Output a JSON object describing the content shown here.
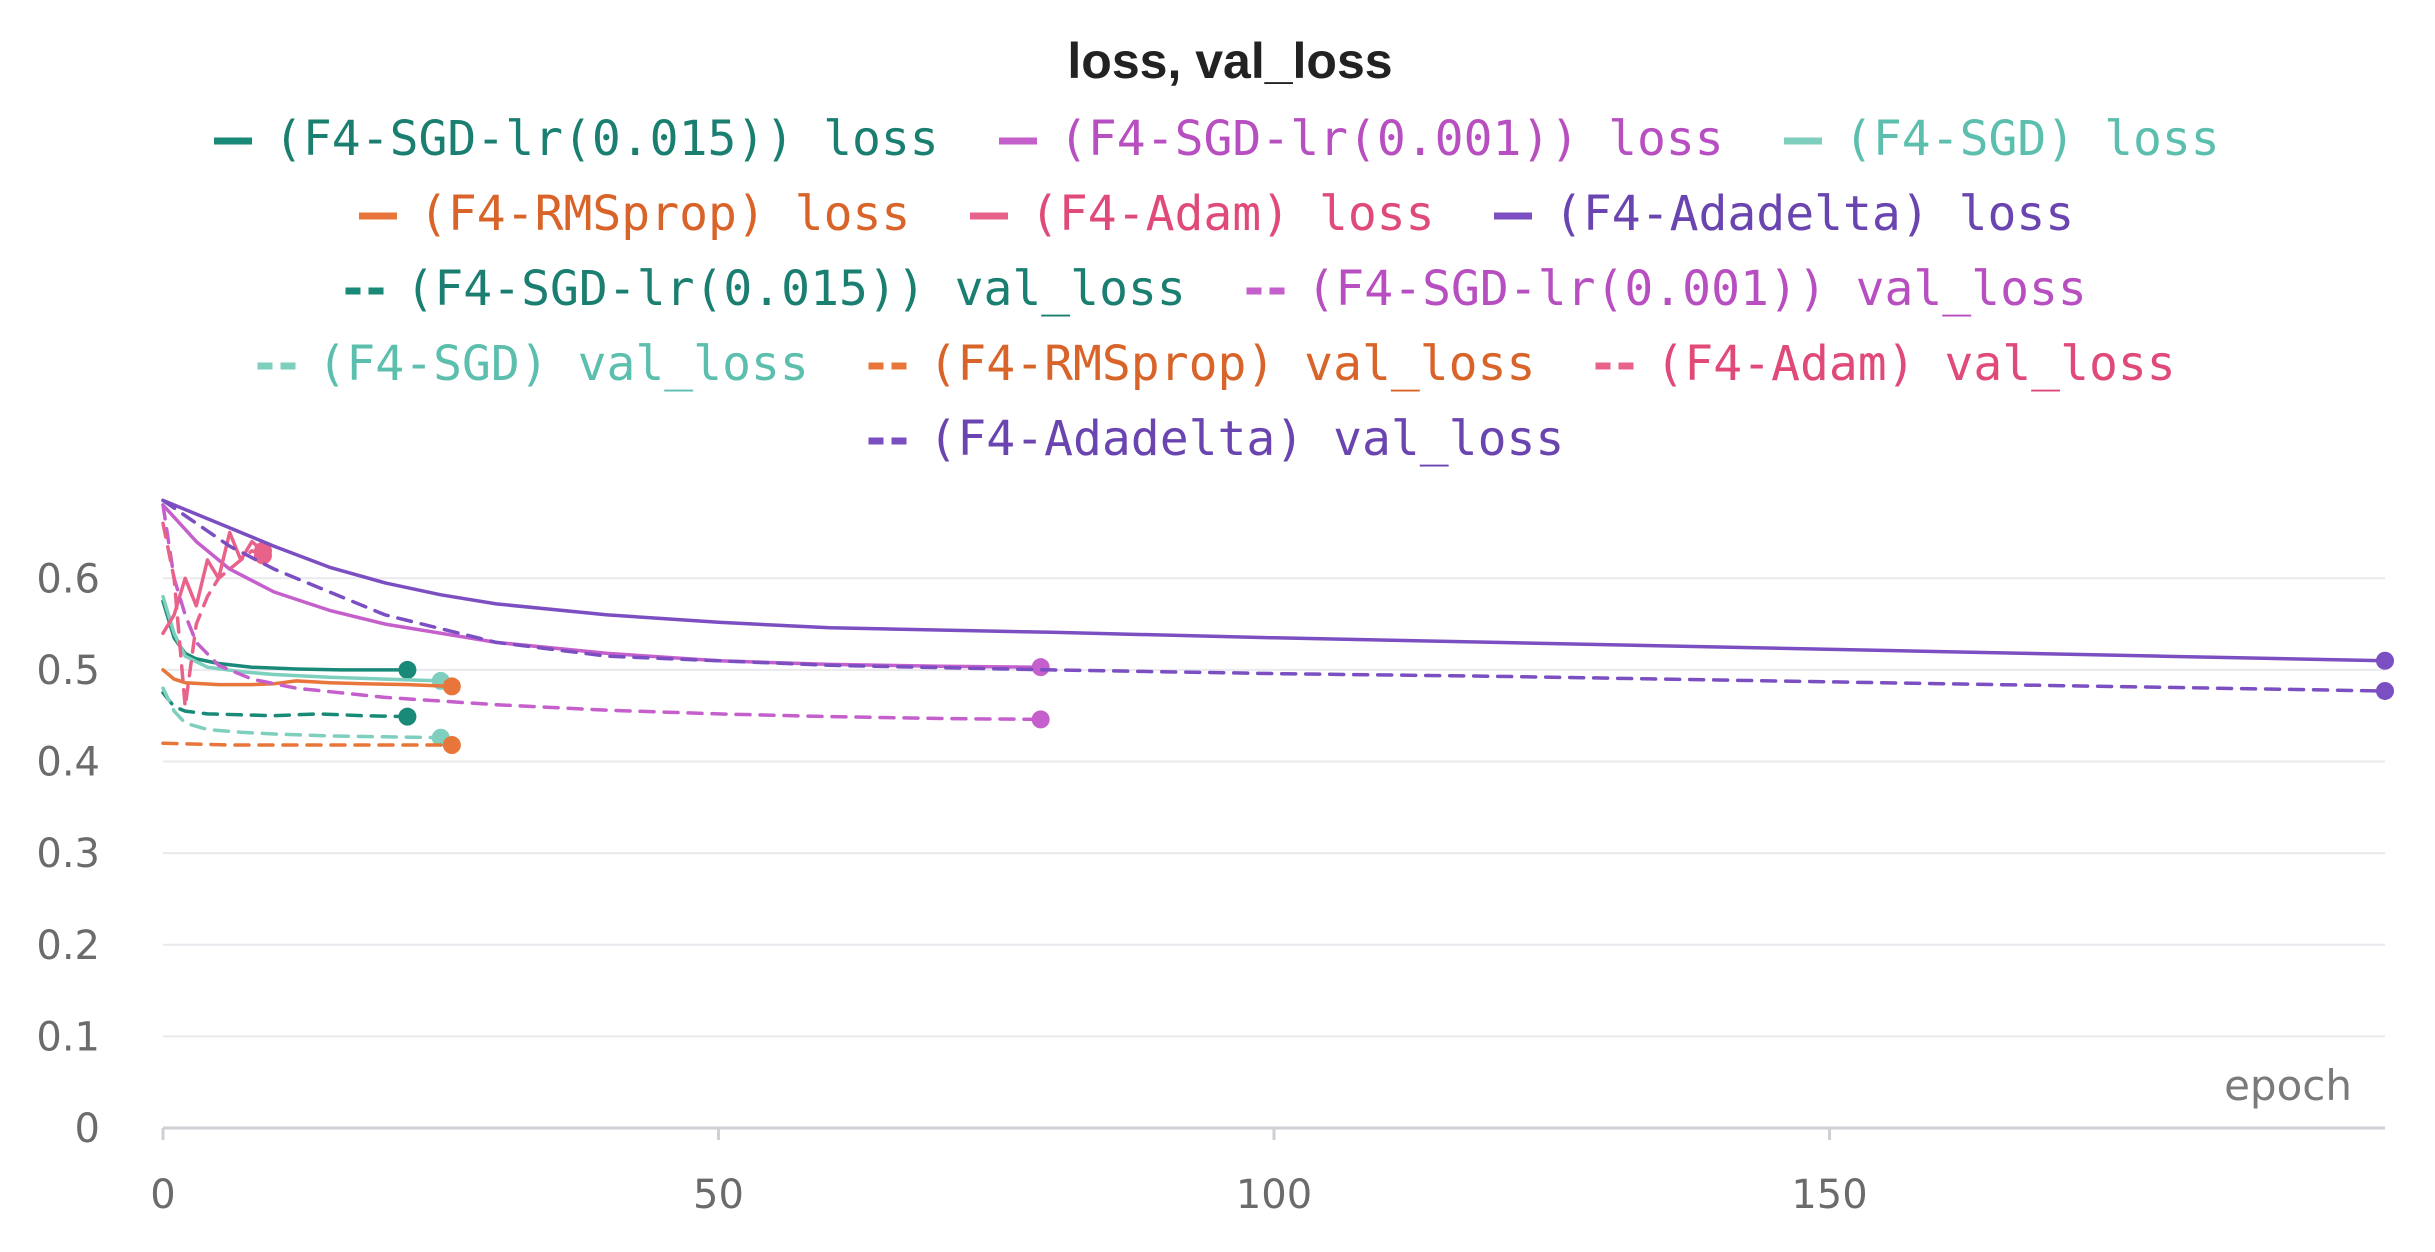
{
  "chart_data": {
    "type": "line",
    "title": "loss, val_loss",
    "xlabel": "epoch",
    "ylabel": "",
    "xlim": [
      0,
      200
    ],
    "ylim": [
      0,
      0.68
    ],
    "x_ticks": [
      0,
      50,
      100,
      150
    ],
    "y_ticks": [
      0,
      0.1,
      0.2,
      0.3,
      0.4,
      0.5,
      0.6
    ],
    "y_tick_labels": [
      "0",
      "0.1",
      "0.2",
      "0.3",
      "0.4",
      "0.5",
      "0.6"
    ],
    "grid": true,
    "legend_position": "top",
    "series": [
      {
        "name": "(F4-SGD-lr(0.015)) loss",
        "color": "#1a8a78",
        "dash": "solid",
        "x": [
          0,
          1,
          2,
          3,
          5,
          8,
          12,
          16,
          20,
          22
        ],
        "y": [
          0.575,
          0.535,
          0.518,
          0.512,
          0.507,
          0.503,
          0.501,
          0.5,
          0.5,
          0.5
        ]
      },
      {
        "name": "(F4-SGD-lr(0.001)) loss",
        "color": "#c55fcc",
        "dash": "solid",
        "x": [
          0,
          3,
          6,
          10,
          15,
          20,
          30,
          40,
          50,
          60,
          70,
          79
        ],
        "y": [
          0.68,
          0.64,
          0.61,
          0.585,
          0.565,
          0.55,
          0.53,
          0.518,
          0.51,
          0.506,
          0.504,
          0.503
        ]
      },
      {
        "name": "(F4-SGD) loss",
        "color": "#7fcfbf",
        "dash": "solid",
        "x": [
          0,
          1,
          2,
          4,
          7,
          10,
          15,
          20,
          25
        ],
        "y": [
          0.58,
          0.54,
          0.515,
          0.503,
          0.498,
          0.495,
          0.492,
          0.49,
          0.488
        ]
      },
      {
        "name": "(F4-RMSprop) loss",
        "color": "#e8763a",
        "dash": "solid",
        "x": [
          0,
          1,
          2,
          5,
          8,
          10,
          12,
          15,
          18,
          22,
          26
        ],
        "y": [
          0.5,
          0.49,
          0.486,
          0.484,
          0.484,
          0.485,
          0.488,
          0.486,
          0.485,
          0.484,
          0.482
        ]
      },
      {
        "name": "(F4-Adam) loss",
        "color": "#e8628a",
        "dash": "solid",
        "x": [
          0,
          1,
          2,
          3,
          4,
          5,
          6,
          7,
          8,
          9
        ],
        "y": [
          0.54,
          0.56,
          0.6,
          0.57,
          0.62,
          0.6,
          0.65,
          0.62,
          0.64,
          0.63
        ]
      },
      {
        "name": "(F4-Adadelta) loss",
        "color": "#7b4fc1",
        "dash": "solid",
        "x": [
          0,
          5,
          10,
          15,
          20,
          25,
          30,
          40,
          50,
          60,
          80,
          100,
          120,
          140,
          160,
          180,
          200
        ],
        "y": [
          0.685,
          0.66,
          0.635,
          0.612,
          0.595,
          0.582,
          0.572,
          0.56,
          0.552,
          0.546,
          0.541,
          0.535,
          0.53,
          0.525,
          0.52,
          0.515,
          0.51
        ]
      },
      {
        "name": "(F4-SGD-lr(0.015)) val_loss",
        "color": "#1a8a78",
        "dash": "dashed",
        "x": [
          0,
          1,
          2,
          4,
          7,
          10,
          14,
          18,
          22
        ],
        "y": [
          0.475,
          0.46,
          0.455,
          0.452,
          0.451,
          0.45,
          0.452,
          0.45,
          0.449
        ]
      },
      {
        "name": "(F4-SGD-lr(0.001)) val_loss",
        "color": "#c55fcc",
        "dash": "dashed",
        "x": [
          0,
          1,
          2,
          3,
          5,
          8,
          12,
          20,
          30,
          40,
          50,
          60,
          70,
          79
        ],
        "y": [
          0.68,
          0.6,
          0.56,
          0.53,
          0.505,
          0.49,
          0.48,
          0.47,
          0.462,
          0.456,
          0.452,
          0.449,
          0.447,
          0.446
        ]
      },
      {
        "name": "(F4-SGD) val_loss",
        "color": "#7fcfbf",
        "dash": "dashed",
        "x": [
          0,
          1,
          2,
          4,
          7,
          10,
          15,
          20,
          25
        ],
        "y": [
          0.48,
          0.455,
          0.442,
          0.435,
          0.432,
          0.43,
          0.428,
          0.427,
          0.426
        ]
      },
      {
        "name": "(F4-RMSprop) val_loss",
        "color": "#e8763a",
        "dash": "dashed",
        "x": [
          0,
          3,
          6,
          10,
          14,
          18,
          22,
          26
        ],
        "y": [
          0.42,
          0.419,
          0.418,
          0.418,
          0.418,
          0.418,
          0.418,
          0.418
        ]
      },
      {
        "name": "(F4-Adam) val_loss",
        "color": "#e8628a",
        "dash": "dashed",
        "x": [
          0,
          1,
          2,
          3,
          4,
          5,
          6,
          7,
          8,
          9
        ],
        "y": [
          0.66,
          0.6,
          0.46,
          0.55,
          0.58,
          0.6,
          0.61,
          0.62,
          0.63,
          0.625
        ]
      },
      {
        "name": "(F4-Adadelta) val_loss",
        "color": "#7b4fc1",
        "dash": "dashed",
        "x": [
          0,
          3,
          6,
          10,
          15,
          20,
          30,
          40,
          60,
          80,
          100,
          120,
          140,
          160,
          180,
          200
        ],
        "y": [
          0.685,
          0.66,
          0.635,
          0.61,
          0.585,
          0.56,
          0.53,
          0.515,
          0.505,
          0.5,
          0.496,
          0.493,
          0.489,
          0.485,
          0.481,
          0.477
        ]
      }
    ]
  }
}
